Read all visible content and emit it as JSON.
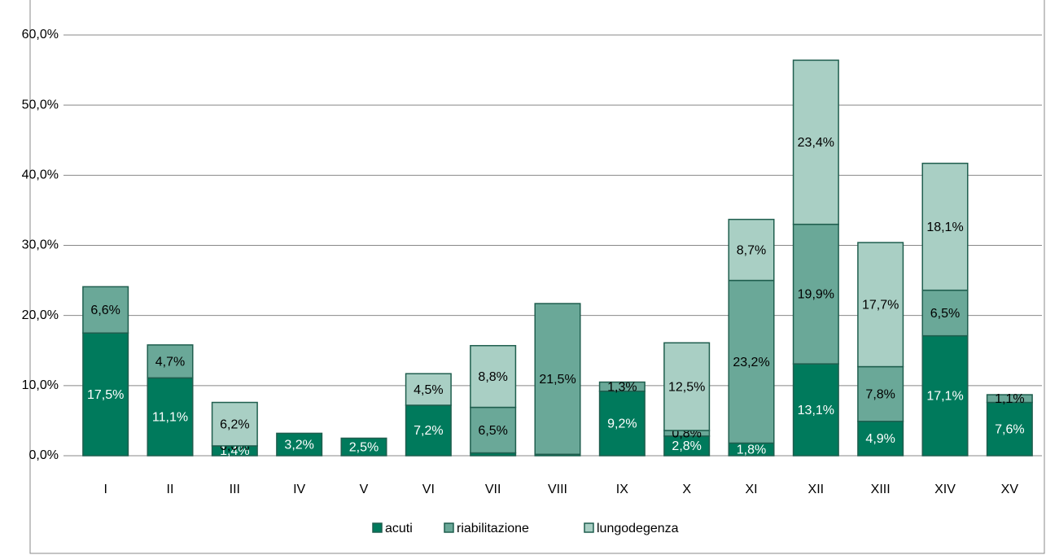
{
  "chart_data": {
    "type": "bar",
    "stacked": true,
    "categories": [
      "I",
      "II",
      "III",
      "IV",
      "V",
      "VI",
      "VII",
      "VIII",
      "IX",
      "X",
      "XI",
      "XII",
      "XIII",
      "XIV",
      "XV"
    ],
    "series": [
      {
        "name": "acuti",
        "color": "#007a5c",
        "values": [
          17.5,
          11.1,
          1.4,
          3.2,
          2.5,
          7.2,
          0.4,
          0.2,
          9.2,
          2.8,
          1.8,
          13.1,
          4.9,
          17.1,
          7.6
        ],
        "value_labels": [
          "17,5%",
          "11,1%",
          "1,4%",
          "3,2%",
          "2,5%",
          "7,2%",
          null,
          null,
          "9,2%",
          "2,8%",
          "1,8%",
          "13,1%",
          "4,9%",
          "17,1%",
          "7,6%"
        ]
      },
      {
        "name": "riabilitazione",
        "color": "#6aa898",
        "values": [
          6.6,
          4.7,
          0,
          0,
          0,
          0,
          6.5,
          21.5,
          1.3,
          0.8,
          23.2,
          19.9,
          7.8,
          6.5,
          1.1
        ],
        "value_labels": [
          "6,6%",
          "4,7%",
          "0,0%",
          null,
          null,
          null,
          "6,5%",
          "21,5%",
          "1,3%",
          "0,8%",
          "23,2%",
          "19,9%",
          "7,8%",
          "6,5%",
          "1,1%"
        ]
      },
      {
        "name": "lungodegenza",
        "color": "#a9cfc4",
        "values": [
          0,
          0,
          6.2,
          0,
          0,
          4.5,
          8.8,
          0,
          0,
          12.5,
          8.7,
          23.4,
          17.7,
          18.1,
          0
        ],
        "value_labels": [
          null,
          null,
          "6,2%",
          null,
          null,
          "4,5%",
          "8,8%",
          null,
          null,
          "12,5%",
          "8,7%",
          "23,4%",
          "17,7%",
          "18,1%",
          null
        ]
      }
    ],
    "ylim": [
      0,
      60
    ],
    "yticks": [
      {
        "value": 0,
        "label": "0,0%"
      },
      {
        "value": 10,
        "label": "10,0%"
      },
      {
        "value": 20,
        "label": "20,0%"
      },
      {
        "value": 30,
        "label": "30,0%"
      },
      {
        "value": 40,
        "label": "40,0%"
      },
      {
        "value": 50,
        "label": "50,0%"
      },
      {
        "value": 60,
        "label": "60,0%"
      }
    ],
    "grid": true,
    "legend": "bottom"
  }
}
